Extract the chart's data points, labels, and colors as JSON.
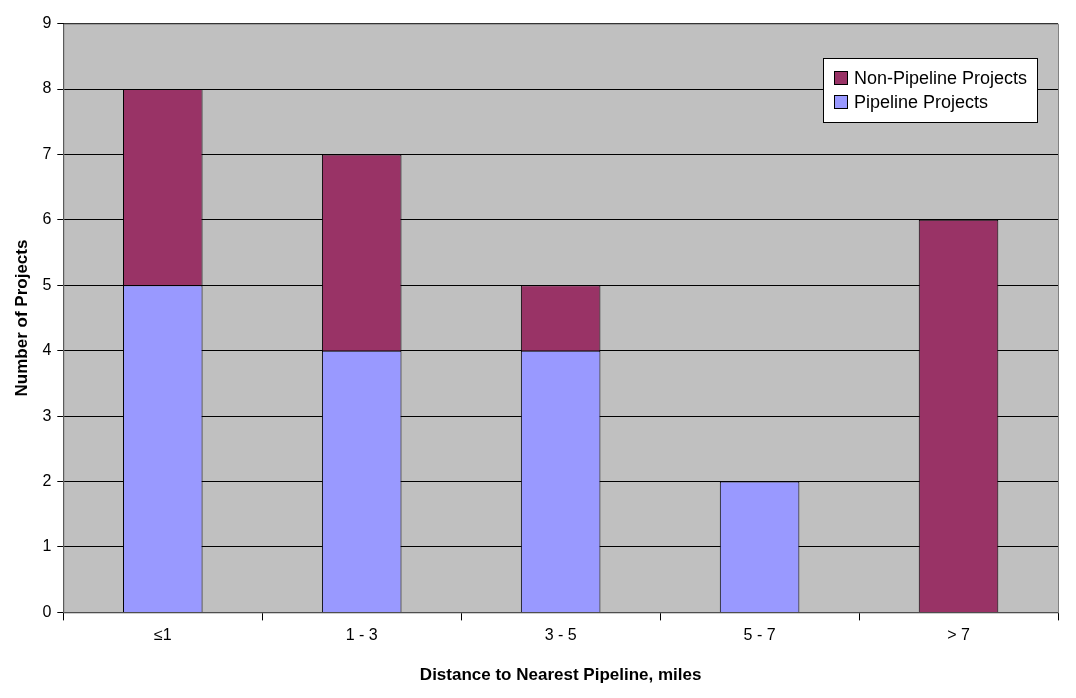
{
  "chart_data": {
    "type": "bar",
    "xlabel": "Distance to Nearest Pipeline, miles",
    "ylabel": "Number of Projects",
    "categories": [
      "≤1",
      "1 - 3",
      "3 - 5",
      "5 - 7",
      "> 7"
    ],
    "stacked": true,
    "series": [
      {
        "name": "Pipeline Projects",
        "color": "#9999ff",
        "values": [
          5,
          4,
          4,
          2,
          0
        ]
      },
      {
        "name": "Non-Pipeline Projects",
        "color": "#993366",
        "values": [
          3,
          3,
          1,
          0,
          6
        ]
      }
    ],
    "ylim": [
      0,
      9
    ],
    "yticks": [
      0,
      1,
      2,
      3,
      4,
      5,
      6,
      7,
      8,
      9
    ],
    "grid": "y",
    "legend": "top right"
  }
}
